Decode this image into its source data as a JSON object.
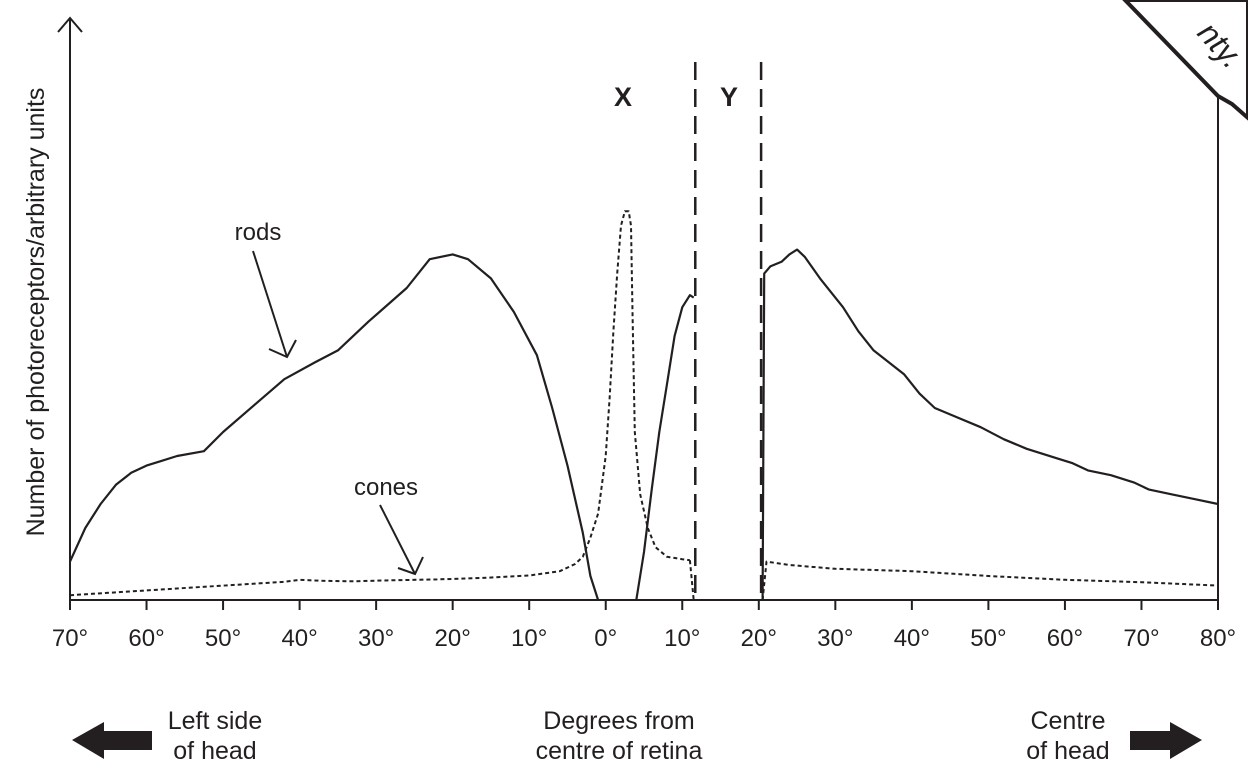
{
  "chart_data": {
    "type": "line",
    "title": "",
    "xlabel": "Degrees from\ncentre of retina",
    "ylabel": "Number of photoreceptors/arbitrary units",
    "x_tick_labels": [
      "70°",
      "60°",
      "50°",
      "40°",
      "30°",
      "20°",
      "10°",
      "0°",
      "10°",
      "20°",
      "30°",
      "40°",
      "50°",
      "60°",
      "70°",
      "80°"
    ],
    "x_tick_values": [
      -70,
      -60,
      -50,
      -40,
      -30,
      -20,
      -10,
      0,
      10,
      20,
      30,
      40,
      50,
      60,
      70,
      80
    ],
    "xlim": [
      -70,
      80
    ],
    "ylim": [
      0,
      100
    ],
    "grid": false,
    "legend": "none",
    "series": [
      {
        "name": "rods",
        "style": "solid",
        "segments": [
          [
            [
              -70,
              8
            ],
            [
              -68,
              15
            ],
            [
              -66,
              20
            ],
            [
              -64,
              24
            ],
            [
              -62,
              26.5
            ],
            [
              -60,
              28
            ],
            [
              -58,
              29
            ],
            [
              -56,
              30
            ],
            [
              -52.5,
              31
            ],
            [
              -50,
              35
            ],
            [
              -46,
              40.5
            ],
            [
              -42,
              46
            ],
            [
              -38,
              49.5
            ],
            [
              -35,
              52
            ],
            [
              -31,
              58
            ],
            [
              -26,
              65
            ],
            [
              -23,
              71
            ],
            [
              -20,
              72
            ],
            [
              -18,
              71
            ],
            [
              -15,
              67
            ],
            [
              -12,
              60
            ],
            [
              -9,
              51
            ],
            [
              -7,
              40
            ],
            [
              -5,
              28
            ],
            [
              -3,
              14
            ],
            [
              -2,
              5
            ],
            [
              -1,
              0
            ]
          ],
          [
            [
              4,
              0
            ],
            [
              5,
              10
            ],
            [
              6,
              23
            ],
            [
              7,
              35
            ],
            [
              8,
              45
            ],
            [
              9,
              55
            ],
            [
              10,
              61
            ],
            [
              11,
              63.5
            ],
            [
              11.5,
              63
            ]
          ],
          [
            [
              20.5,
              0
            ],
            [
              20.7,
              68
            ],
            [
              21.5,
              69.5
            ],
            [
              23,
              70.5
            ],
            [
              24,
              72
            ],
            [
              25,
              73
            ],
            [
              26,
              71.5
            ],
            [
              28,
              67
            ],
            [
              31,
              61
            ],
            [
              33,
              56
            ],
            [
              35,
              52
            ],
            [
              37,
              49.5
            ],
            [
              39,
              47
            ],
            [
              41,
              43
            ],
            [
              43,
              40
            ],
            [
              46,
              38
            ],
            [
              49,
              36
            ],
            [
              52,
              33.5
            ],
            [
              55,
              31.5
            ],
            [
              59,
              29.5
            ],
            [
              61,
              28.5
            ],
            [
              63,
              27
            ],
            [
              66,
              26
            ],
            [
              69,
              24.5
            ],
            [
              71,
              23
            ],
            [
              74,
              22
            ],
            [
              77,
              21
            ],
            [
              80,
              20
            ]
          ]
        ]
      },
      {
        "name": "cones",
        "style": "dotted",
        "segments": [
          [
            [
              -70,
              1
            ],
            [
              -60,
              2
            ],
            [
              -50,
              3
            ],
            [
              -42,
              3.8
            ],
            [
              -40,
              4.2
            ],
            [
              -37,
              4
            ],
            [
              -33,
              3.9
            ],
            [
              -28,
              4.1
            ],
            [
              -22,
              4.3
            ],
            [
              -16,
              4.6
            ],
            [
              -10,
              5.1
            ],
            [
              -6,
              6
            ],
            [
              -4,
              7.5
            ],
            [
              -3,
              9
            ],
            [
              -2,
              13
            ],
            [
              -1,
              18
            ],
            [
              0,
              30
            ],
            [
              0.5,
              42
            ],
            [
              1,
              56
            ],
            [
              1.5,
              68
            ],
            [
              2,
              78
            ],
            [
              2.5,
              81
            ],
            [
              3,
              81
            ],
            [
              3.3,
              78
            ],
            [
              3.5,
              60
            ],
            [
              3.8,
              35
            ],
            [
              4.5,
              22
            ],
            [
              5.5,
              15
            ],
            [
              6.5,
              11
            ],
            [
              8,
              9
            ],
            [
              10,
              8.5
            ],
            [
              11,
              8.3
            ]
          ],
          [
            [
              11,
              8.3
            ],
            [
              11.5,
              0
            ]
          ],
          [
            [
              20.5,
              0
            ],
            [
              21,
              8
            ],
            [
              24,
              7.3
            ],
            [
              30,
              6.5
            ],
            [
              40,
              6
            ],
            [
              50,
              5
            ],
            [
              60,
              4.2
            ],
            [
              70,
              3.7
            ],
            [
              80,
              3
            ]
          ]
        ]
      }
    ],
    "annotations": {
      "rods_label": "rods",
      "cones_label": "cones",
      "region_x_label": "X",
      "region_y_label": "Y",
      "region_y_bounds": [
        11.7,
        20.3
      ],
      "left_caption": "Left side\nof head",
      "right_caption": "Centre\nof head"
    },
    "watermark_text": "nty."
  }
}
